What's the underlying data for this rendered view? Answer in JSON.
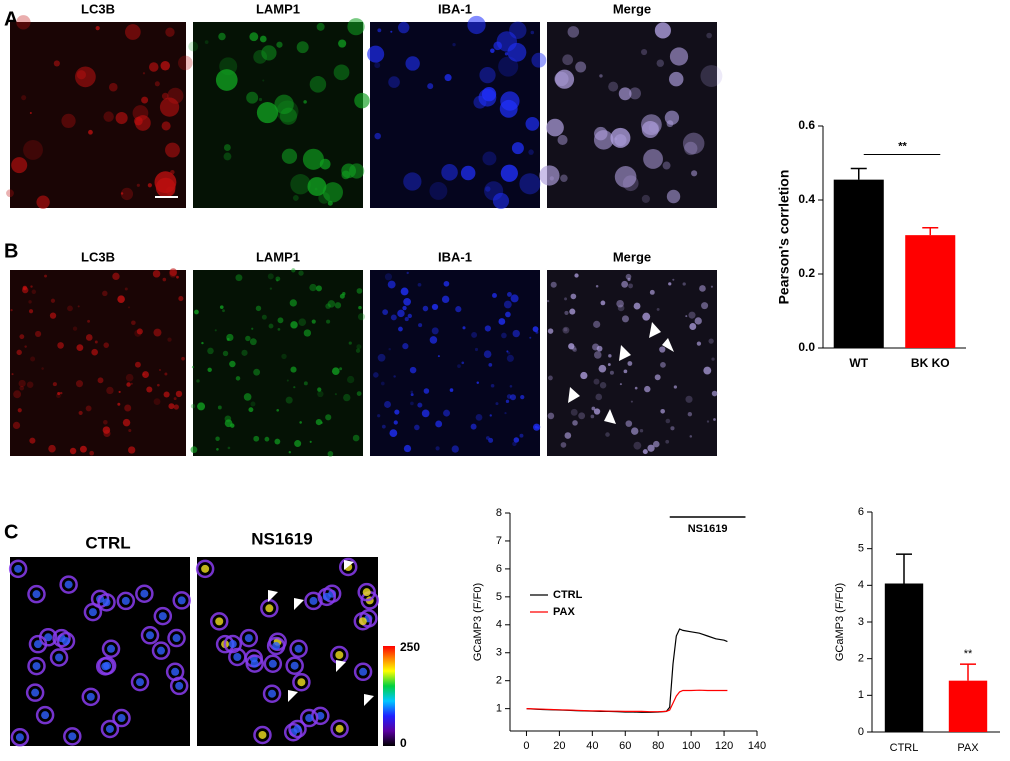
{
  "panels": {
    "labels": [
      "A",
      "B",
      "C"
    ],
    "a_headers": [
      "LC3B",
      "LAMP1",
      "IBA-1",
      "Merge"
    ],
    "b_headers": [
      "LC3B",
      "LAMP1",
      "IBA-1",
      "Merge"
    ],
    "c_headers": [
      "CTRL",
      "NS1619"
    ],
    "colorbar_labels": [
      "250",
      "0"
    ]
  },
  "chart_data": [
    {
      "type": "bar",
      "ylabel": "Pearson's corrletion",
      "categories": [
        "WT",
        "BK KO"
      ],
      "values": [
        0.455,
        0.305
      ],
      "errors": [
        0.03,
        0.02
      ],
      "colors": [
        "#000000",
        "#ff0000"
      ],
      "ylim": [
        0,
        0.6
      ],
      "yticks": [
        {
          "value": 0,
          "label": "0.0"
        },
        0.2,
        0.4,
        0.6
      ],
      "significance": "**"
    },
    {
      "type": "line",
      "ylabel": "GCaMP3 (F/F0)",
      "annotation": "NS1619",
      "stim_range": [
        87,
        133
      ],
      "x": [
        0,
        5,
        10,
        15,
        20,
        25,
        30,
        35,
        40,
        45,
        50,
        55,
        60,
        65,
        70,
        75,
        80,
        85,
        87,
        89,
        91,
        93,
        95,
        100,
        105,
        110,
        115,
        120,
        122
      ],
      "series": [
        {
          "name": "CTRL",
          "color": "#000000",
          "values": [
            1.0,
            0.98,
            0.97,
            0.96,
            0.95,
            0.94,
            0.93,
            0.92,
            0.91,
            0.9,
            0.9,
            0.89,
            0.88,
            0.88,
            0.87,
            0.87,
            0.88,
            0.9,
            1.05,
            2.6,
            3.6,
            3.85,
            3.8,
            3.75,
            3.7,
            3.6,
            3.5,
            3.45,
            3.4
          ]
        },
        {
          "name": "PAX",
          "color": "#ff0000",
          "values": [
            1.0,
            0.99,
            0.98,
            0.97,
            0.96,
            0.95,
            0.94,
            0.93,
            0.92,
            0.92,
            0.91,
            0.91,
            0.9,
            0.9,
            0.9,
            0.89,
            0.89,
            0.9,
            0.95,
            1.2,
            1.45,
            1.6,
            1.65,
            1.65,
            1.66,
            1.65,
            1.65,
            1.65,
            1.65
          ]
        }
      ],
      "xlim": [
        -10,
        140
      ],
      "xticks": [
        0,
        20,
        40,
        60,
        80,
        100,
        120,
        140
      ],
      "ylim": [
        0.2,
        8
      ],
      "yticks": [
        1,
        2,
        3,
        4,
        5,
        6,
        7,
        8
      ]
    },
    {
      "type": "bar",
      "ylabel": "GCaMP3 (F/F0)",
      "categories": [
        "CTRL",
        "PAX"
      ],
      "values": [
        4.05,
        1.4
      ],
      "errors": [
        0.8,
        0.45
      ],
      "colors": [
        "#000000",
        "#ff0000"
      ],
      "ylim": [
        0,
        6
      ],
      "yticks": [
        0,
        1,
        2,
        3,
        4,
        5,
        6
      ],
      "significance": "**"
    }
  ]
}
